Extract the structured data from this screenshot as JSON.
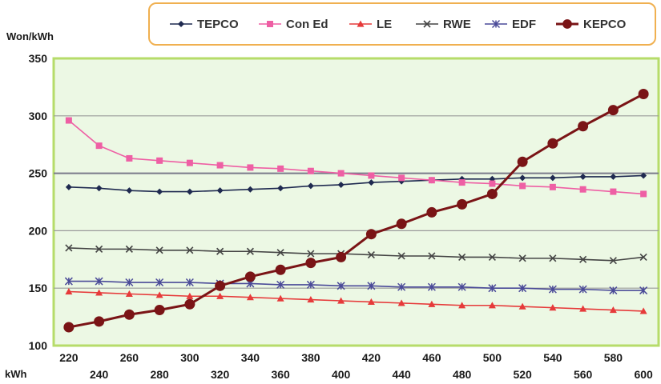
{
  "chart_data": {
    "type": "line",
    "ylabel": "Won/kWh",
    "xlabel": "kWh",
    "ylim": [
      100,
      350
    ],
    "yticks": [
      100,
      150,
      200,
      250,
      300,
      350
    ],
    "x": [
      220,
      240,
      260,
      280,
      300,
      320,
      340,
      360,
      380,
      400,
      420,
      440,
      460,
      480,
      500,
      520,
      540,
      560,
      580,
      600
    ],
    "x_tick_labels_top": [
      "220",
      "260",
      "300",
      "340",
      "380",
      "420",
      "460",
      "500",
      "540",
      "580"
    ],
    "x_tick_labels_bottom": [
      "240",
      "280",
      "320",
      "360",
      "400",
      "440",
      "480",
      "520",
      "560",
      "600"
    ],
    "grid": true,
    "legend_position": "top",
    "plot_background": "#ecf8e4",
    "plot_border_color": "#b6dc6a",
    "legend_border_color": "#f0b050",
    "series": [
      {
        "name": "TEPCO",
        "color": "#1f2a50",
        "marker": "diamond",
        "values": [
          238,
          237,
          235,
          234,
          234,
          235,
          236,
          237,
          239,
          240,
          242,
          243,
          244,
          245,
          245,
          246,
          246,
          247,
          247,
          248
        ]
      },
      {
        "name": "Con Ed",
        "color": "#ee5fa4",
        "marker": "square",
        "values": [
          296,
          274,
          263,
          261,
          259,
          257,
          255,
          254,
          252,
          250,
          248,
          246,
          244,
          242,
          241,
          239,
          238,
          236,
          234,
          232
        ]
      },
      {
        "name": "LE",
        "color": "#e63a3a",
        "marker": "triangle",
        "values": [
          147,
          146,
          145,
          144,
          143,
          143,
          142,
          141,
          140,
          139,
          138,
          137,
          136,
          135,
          135,
          134,
          133,
          132,
          131,
          130
        ]
      },
      {
        "name": "RWE",
        "color": "#444444",
        "marker": "x",
        "values": [
          185,
          184,
          184,
          183,
          183,
          182,
          182,
          181,
          180,
          180,
          179,
          178,
          178,
          177,
          177,
          176,
          176,
          175,
          174,
          177
        ]
      },
      {
        "name": "EDF",
        "color": "#4a4a98",
        "marker": "star",
        "values": [
          156,
          156,
          155,
          155,
          155,
          154,
          154,
          153,
          153,
          152,
          152,
          151,
          151,
          151,
          150,
          150,
          149,
          149,
          148,
          148
        ]
      },
      {
        "name": "KEPCO",
        "color": "#7a1416",
        "marker": "circle",
        "values": [
          116,
          121,
          127,
          131,
          136,
          152,
          160,
          166,
          172,
          177,
          197,
          206,
          216,
          223,
          232,
          260,
          276,
          291,
          305,
          319
        ]
      }
    ]
  }
}
